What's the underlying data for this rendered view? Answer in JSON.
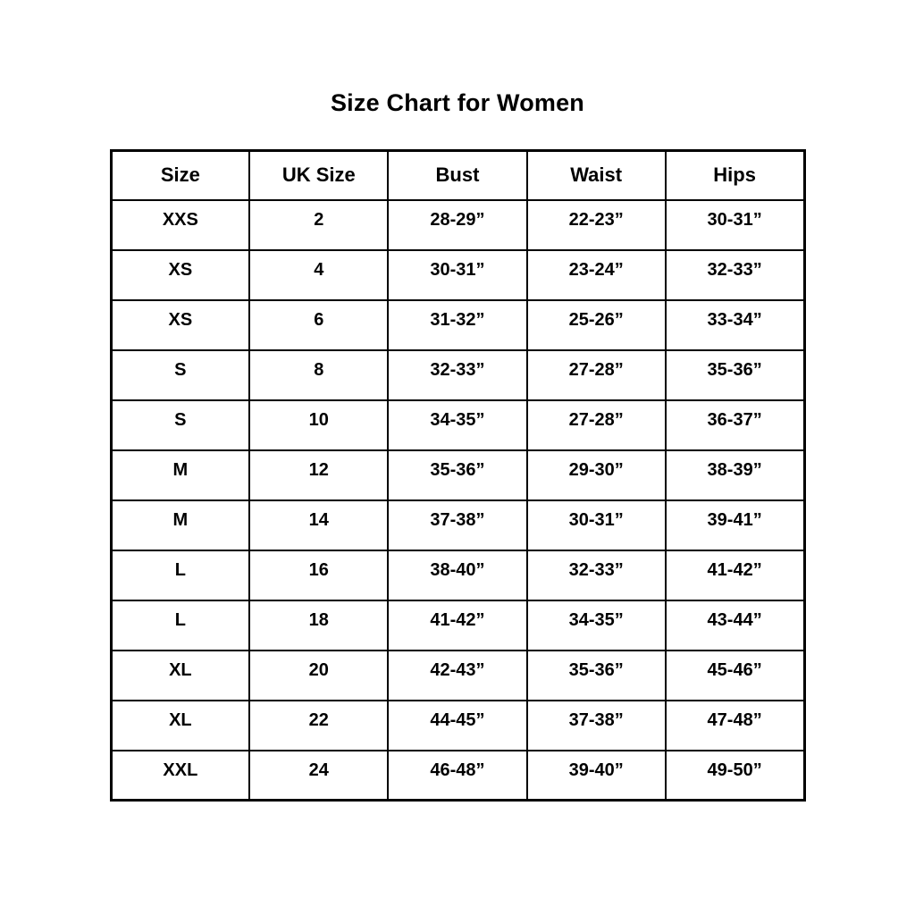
{
  "page": {
    "title": "Size Chart for Women"
  },
  "chart_data": {
    "type": "table",
    "title": "Size Chart for Women",
    "columns": [
      "Size",
      "UK Size",
      "Bust",
      "Waist",
      "Hips"
    ],
    "rows": [
      [
        "XXS",
        "2",
        "28-29”",
        "22-23”",
        "30-31”"
      ],
      [
        "XS",
        "4",
        "30-31”",
        "23-24”",
        "32-33”"
      ],
      [
        "XS",
        "6",
        "31-32”",
        "25-26”",
        "33-34”"
      ],
      [
        "S",
        "8",
        "32-33”",
        "27-28”",
        "35-36”"
      ],
      [
        "S",
        "10",
        "34-35”",
        "27-28”",
        "36-37”"
      ],
      [
        "M",
        "12",
        "35-36”",
        "29-30”",
        "38-39”"
      ],
      [
        "M",
        "14",
        "37-38”",
        "30-31”",
        "39-41”"
      ],
      [
        "L",
        "16",
        "38-40”",
        "32-33”",
        "41-42”"
      ],
      [
        "L",
        "18",
        "41-42”",
        "34-35”",
        "43-44”"
      ],
      [
        "XL",
        "20",
        "42-43”",
        "35-36”",
        "45-46”"
      ],
      [
        "XL",
        "22",
        "44-45”",
        "37-38”",
        "47-48”"
      ],
      [
        "XXL",
        "24",
        "46-48”",
        "39-40”",
        "49-50”"
      ]
    ],
    "layout": {
      "grid": true,
      "border_color": "#000000",
      "text_color": "#000000",
      "background_color": "#ffffff"
    }
  }
}
